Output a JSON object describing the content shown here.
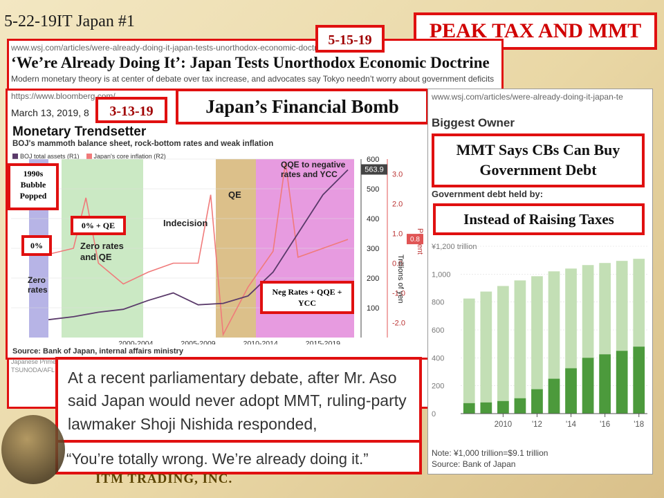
{
  "slide": {
    "title": "5-22-19IT Japan #1",
    "footer_brand": "ITM TRADING, INC."
  },
  "banner": {
    "peak": "PEAK TAX AND MMT"
  },
  "article": {
    "date": "5-15-19",
    "url": "www.wsj.com/articles/were-already-doing-it-japan-tests-unorthodox-economic-doctrine-11557912602",
    "headline": "‘We’re Already Doing It’: Japan Tests Unorthodox Economic Doctrine",
    "dek": "Modern monetary theory is at center of debate over tax increase, and advocates say Tokyo needn’t worry about government deficits"
  },
  "bloomberg": {
    "url": "https://www.bloomberg.com/...",
    "dateline": "March 13, 2019, 8",
    "date_tag": "3-13-19",
    "title_box": "Japan’s Financial Bomb",
    "chart_title": "Monetary Trendsetter",
    "chart_subtitle": "BOJ's mammoth balance sheet, rock-bottom rates and weak inflation",
    "legend_assets": "BOJ total assets (R1)",
    "legend_inflation": "Japan's core inflation (R2)",
    "label_1990s": "1990s Bubble Popped",
    "label_zero_pct": "0%",
    "label_zero_qe_pct": "0% + QE",
    "label_zero_rates": "Zero rates",
    "label_zero_rates_qe": "Zero rates and QE",
    "label_indecision": "Indecision",
    "label_qe": "QE",
    "label_qe_neg": "QQE to negative rates and YCC",
    "label_neg_rates": "Neg Rates + QQE + YCC",
    "source": "Source: Bank of Japan, internal affairs ministry",
    "caption_1": "Japanese Prime",
    "caption_2": "TSUNODA/AFL",
    "end_value": "563.9",
    "end_inflation": "0.8",
    "r1_label": "Trillions of yen",
    "r2_label": "Percent"
  },
  "quote": {
    "text": "At a recent parliamentary debate, after Mr. Aso said Japan would never adopt MMT, ruling-party lawmaker Shoji Nishida responded,",
    "reply": "“You’re totally wrong. We’re already doing it.”"
  },
  "wsj_side": {
    "url": "www.wsj.com/articles/were-already-doing-it-japan-te",
    "heading": "Biggest Owner",
    "frag_lines": [
      "S",
      "g",
      "w"
    ],
    "mmt_box": "MMT Says CBs Can Buy Government Debt",
    "taxes_box": "Instead of Raising Taxes",
    "chart_label": "Government debt held by:",
    "y_unit": "¥1,200 trillion",
    "note": "Note: ¥1,000 trillion=$9.1 trillion",
    "source": "Source: Bank of Japan"
  },
  "colors": {
    "red": "#e01010",
    "boj_green": "#4c9a3c",
    "total_green": "#c3dfb5",
    "assets_line": "#5a3a6a",
    "inflation_line": "#f07a7a",
    "zero_band": "#cbe9c4",
    "qe_band": "#dcc08a",
    "neg_band": "#e79be0",
    "bubble_band": "#b7b4e6"
  },
  "chart_data": [
    {
      "type": "line",
      "title": "Monetary Trendsetter",
      "subtitle": "BOJ's mammoth balance sheet, rock-bottom rates and weak inflation",
      "x_tick_labels": [
        "2000-2004",
        "2005-2009",
        "2010-2014",
        "2015-2019"
      ],
      "y_right1": {
        "label": "Trillions of yen",
        "ticks": [
          100,
          200,
          300,
          400,
          500,
          600
        ],
        "range": [
          0,
          600
        ]
      },
      "y_right2": {
        "label": "Percent",
        "ticks": [
          -2.0,
          -1.0,
          0,
          1.0,
          2.0,
          3.0
        ],
        "range": [
          -2.5,
          3.5
        ]
      },
      "series": [
        {
          "name": "BOJ total assets (R1)",
          "x": [
            1995,
            1997,
            1999,
            2001,
            2003,
            2005,
            2007,
            2009,
            2011,
            2013,
            2015,
            2017,
            2019
          ],
          "values": [
            60,
            70,
            85,
            95,
            125,
            150,
            110,
            115,
            140,
            220,
            350,
            480,
            564
          ]
        },
        {
          "name": "Japan's core inflation (R2)",
          "x": [
            1995,
            1997,
            1998,
            1999,
            2001,
            2003,
            2005,
            2007,
            2008,
            2009,
            2011,
            2013,
            2014,
            2015,
            2017,
            2019
          ],
          "values": [
            0.3,
            0.5,
            2.2,
            0.0,
            -0.7,
            -0.3,
            0.0,
            0.0,
            2.3,
            -2.4,
            -0.8,
            0.4,
            3.4,
            0.2,
            0.5,
            0.8
          ]
        }
      ]
    },
    {
      "type": "bar",
      "title": "Government debt held by:",
      "categories": [
        "2008",
        "2009",
        "2010",
        "2011",
        "2012",
        "2013",
        "2014",
        "2015",
        "2016",
        "2017",
        "2018"
      ],
      "x_tick_labels": [
        "2010",
        "'12",
        "'14",
        "'16",
        "'18"
      ],
      "y_ticks": [
        0,
        200,
        400,
        600,
        800,
        1000,
        "¥1,200 trillion"
      ],
      "ylim": [
        0,
        1200
      ],
      "series": [
        {
          "values": [
            825,
            875,
            915,
            955,
            985,
            1020,
            1040,
            1065,
            1080,
            1095,
            1110
          ]
        },
        {
          "values": [
            75,
            80,
            90,
            110,
            175,
            250,
            325,
            400,
            425,
            450,
            480
          ]
        }
      ]
    }
  ]
}
